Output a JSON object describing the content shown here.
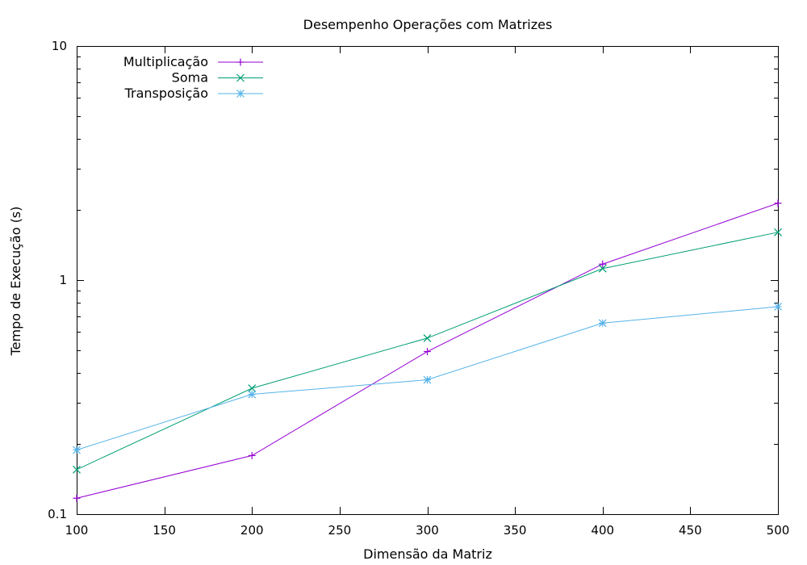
{
  "chart_data": {
    "type": "line",
    "title": "Desempenho Operações com Matrizes",
    "xlabel": "Dimensão da Matriz",
    "ylabel": "Tempo de Execução (s)",
    "xlim": [
      100,
      500
    ],
    "ylim": [
      0.1,
      10
    ],
    "yscale": "log",
    "grid": false,
    "legend_position": "top-left",
    "x_ticks": [
      "100",
      "150",
      "200",
      "250",
      "300",
      "350",
      "400",
      "450",
      "500"
    ],
    "y_ticks": [
      "0.1",
      "1",
      "10"
    ],
    "x": [
      100,
      200,
      300,
      400,
      500
    ],
    "series": [
      {
        "name": "Multiplicação",
        "color": "#9400d3",
        "marker": "plus",
        "values": [
          0.117,
          0.178,
          0.495,
          1.17,
          2.13
        ]
      },
      {
        "name": "Soma",
        "color": "#009e73",
        "marker": "cross",
        "values": [
          0.155,
          0.345,
          0.565,
          1.12,
          1.6
        ]
      },
      {
        "name": "Transposição",
        "color": "#56b4e9",
        "marker": "star",
        "values": [
          0.188,
          0.325,
          0.375,
          0.655,
          0.77
        ]
      }
    ]
  }
}
